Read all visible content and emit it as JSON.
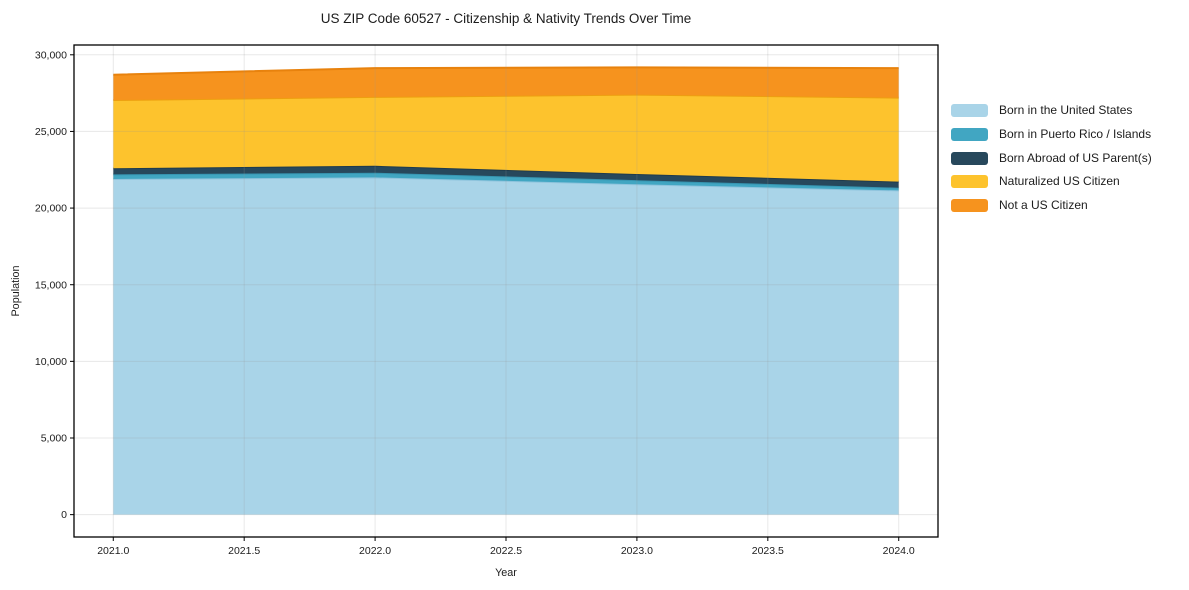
{
  "chart": {
    "title": "US ZIP Code 60527 - Citizenship & Nativity Trends Over Time",
    "xlabel": "Year",
    "ylabel": "Population"
  },
  "chart_data": {
    "type": "area",
    "stacked": true,
    "title": "US ZIP Code 60527 - Citizenship & Nativity Trends Over Time",
    "xlabel": "Year",
    "ylabel": "Population",
    "x": [
      2021,
      2022,
      2023,
      2024
    ],
    "series": [
      {
        "name": "Born in the United States",
        "color": "#A9D4E8",
        "edge": "#8FC4DD",
        "values": [
          21900,
          22000,
          21550,
          21150
        ]
      },
      {
        "name": "Born in Puerto Rico / Islands",
        "color": "#41A6C2",
        "edge": "#3795B1",
        "values": [
          300,
          310,
          270,
          180
        ]
      },
      {
        "name": "Born Abroad of US Parent(s)",
        "color": "#27485C",
        "edge": "#1F3B4D",
        "values": [
          400,
          450,
          400,
          400
        ]
      },
      {
        "name": "Naturalized US Citizen",
        "color": "#FDC32D",
        "edge": "#ED9F10",
        "values": [
          4450,
          4490,
          5180,
          5480
        ]
      },
      {
        "name": "Not a US Citizen",
        "color": "#F6931E",
        "edge": "#E8820D",
        "values": [
          1650,
          1880,
          1780,
          1920
        ]
      }
    ],
    "stack_totals": [
      28700,
      29130,
      29180,
      29130
    ],
    "xlim": [
      2020.85,
      2024.15
    ],
    "ylim": [
      -1459,
      30639
    ],
    "xticks": [
      2021.0,
      2021.5,
      2022.0,
      2022.5,
      2023.0,
      2023.5,
      2024.0
    ],
    "xtick_labels": [
      "2021.0",
      "2021.5",
      "2022.0",
      "2022.5",
      "2023.0",
      "2023.5",
      "2024.0"
    ],
    "yticks": [
      0,
      5000,
      10000,
      15000,
      20000,
      25000,
      30000
    ],
    "ytick_labels": [
      "0",
      "5,000",
      "10,000",
      "15,000",
      "20,000",
      "25,000",
      "30,000"
    ],
    "grid": true,
    "legend_position": "right-outside"
  },
  "colors": {
    "background": "#ffffff",
    "frame": "#000000",
    "grid": "rgba(150,150,150,0.22)",
    "text": "#1c1c1c"
  }
}
